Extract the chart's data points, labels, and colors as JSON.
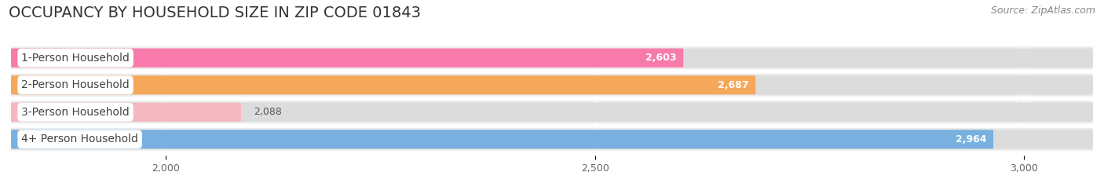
{
  "title": "OCCUPANCY BY HOUSEHOLD SIZE IN ZIP CODE 01843",
  "source": "Source: ZipAtlas.com",
  "categories": [
    "1-Person Household",
    "2-Person Household",
    "3-Person Household",
    "4+ Person Household"
  ],
  "values": [
    2603,
    2687,
    2088,
    2964
  ],
  "bar_colors": [
    "#f87aaa",
    "#f5a85a",
    "#f5b8c0",
    "#78b0e0"
  ],
  "bar_bg_color": "#e8e8e8",
  "row_bg_colors": [
    "#f0f0f0",
    "#f0f0f0",
    "#f0f0f0",
    "#f0f0f0"
  ],
  "xlim_min": 1820,
  "xlim_max": 3080,
  "xticks": [
    2000,
    2500,
    3000
  ],
  "xtick_labels": [
    "2,000",
    "2,500",
    "3,000"
  ],
  "title_fontsize": 14,
  "source_fontsize": 9,
  "label_fontsize": 10,
  "value_fontsize": 9,
  "tick_fontsize": 9,
  "background_color": "#ffffff"
}
